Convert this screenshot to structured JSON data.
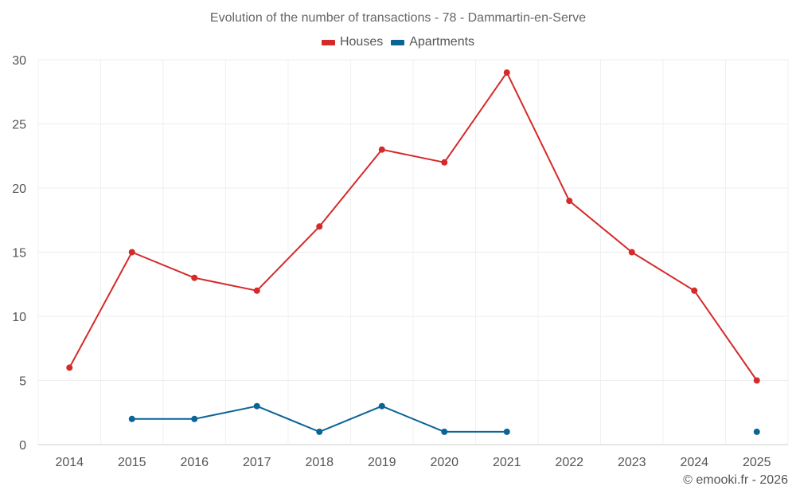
{
  "chart_data": {
    "type": "line",
    "title": "Evolution of the number of transactions - 78 - Dammartin-en-Serve",
    "categories": [
      "2014",
      "2015",
      "2016",
      "2017",
      "2018",
      "2019",
      "2020",
      "2021",
      "2022",
      "2023",
      "2024",
      "2025"
    ],
    "ylim": [
      0,
      30
    ],
    "yticks": [
      0,
      5,
      10,
      15,
      20,
      25,
      30
    ],
    "grid": true,
    "legend_position": "top-center",
    "series": [
      {
        "name": "Houses",
        "color": "#d52a2a",
        "values": [
          6,
          15,
          13,
          12,
          17,
          23,
          22,
          29,
          19,
          15,
          12,
          5
        ]
      },
      {
        "name": "Apartments",
        "color": "#0a6496",
        "values": [
          null,
          2,
          2,
          3,
          1,
          3,
          1,
          1,
          null,
          null,
          null,
          1
        ]
      }
    ]
  },
  "footer": {
    "credit": "© emooki.fr - 2026"
  }
}
